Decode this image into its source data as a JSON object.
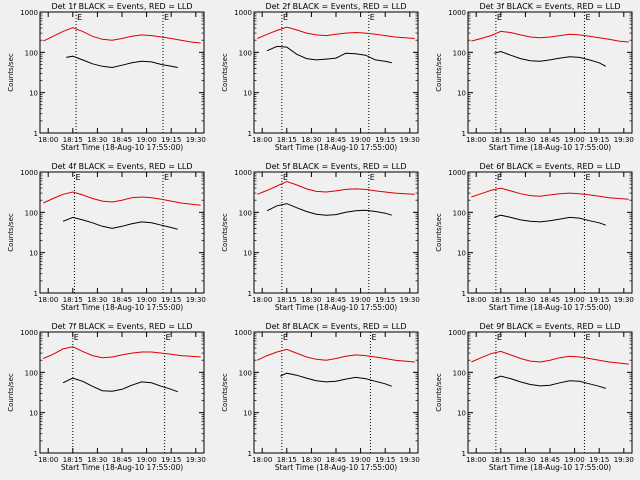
{
  "figure": {
    "xlabel": "Start Time (18-Aug-10 17:55:00)",
    "ylabel": "Counts/sec",
    "marker_label": "E",
    "colors": {
      "background": "#f0f0f0",
      "events": "#000000",
      "lld": "#dd0000",
      "axes": "#000000"
    }
  },
  "chart_data": [
    {
      "type": "line",
      "title": "Det 1f BLACK = Events, RED = LLD",
      "xlabel": "Start Time (18-Aug-10 17:55:00)",
      "ylabel": "Counts/sec",
      "yscale": "log",
      "ylim": [
        1,
        1000
      ],
      "y_ticks": [
        "1",
        "10",
        "100",
        "1000"
      ],
      "x_ticks": [
        "18:00",
        "18:15",
        "18:30",
        "18:45",
        "19:00",
        "19:15",
        "19:30"
      ],
      "x_markers": [
        "18:17",
        "19:10"
      ],
      "series": [
        {
          "name": "LLD",
          "color": "#dd0000",
          "x": [
            "17:57",
            "18:03",
            "18:09",
            "18:15",
            "18:21",
            "18:27",
            "18:33",
            "18:39",
            "18:45",
            "18:51",
            "18:57",
            "19:03",
            "19:09",
            "19:15",
            "19:21",
            "19:27",
            "19:33"
          ],
          "values": [
            190,
            250,
            330,
            410,
            330,
            250,
            210,
            200,
            220,
            250,
            270,
            260,
            240,
            220,
            200,
            180,
            170
          ]
        },
        {
          "name": "Events",
          "color": "#000000",
          "x": [
            "18:11",
            "18:15",
            "18:21",
            "18:27",
            "18:33",
            "18:39",
            "18:45",
            "18:51",
            "18:57",
            "19:03",
            "19:09",
            "19:15",
            "19:19"
          ],
          "values": [
            75,
            80,
            65,
            52,
            45,
            42,
            48,
            55,
            60,
            58,
            50,
            45,
            42
          ]
        }
      ]
    },
    {
      "type": "line",
      "title": "Det 2f BLACK = Events, RED = LLD",
      "xlabel": "Start Time (18-Aug-10 17:55:00)",
      "ylabel": "Counts/sec",
      "yscale": "log",
      "ylim": [
        1,
        1000
      ],
      "y_ticks": [
        "1",
        "10",
        "100",
        "1000"
      ],
      "x_ticks": [
        "18:00",
        "18:15",
        "18:30",
        "18:45",
        "19:00",
        "19:15",
        "19:30"
      ],
      "x_markers": [
        "18:12",
        "19:05"
      ],
      "series": [
        {
          "name": "LLD",
          "color": "#dd0000",
          "x": [
            "17:57",
            "18:03",
            "18:09",
            "18:15",
            "18:21",
            "18:27",
            "18:33",
            "18:39",
            "18:45",
            "18:51",
            "18:57",
            "19:03",
            "19:09",
            "19:15",
            "19:21",
            "19:27",
            "19:33"
          ],
          "values": [
            220,
            280,
            350,
            420,
            360,
            300,
            270,
            260,
            280,
            300,
            310,
            300,
            280,
            260,
            240,
            230,
            220
          ]
        },
        {
          "name": "Events",
          "color": "#000000",
          "x": [
            "18:03",
            "18:09",
            "18:15",
            "18:21",
            "18:27",
            "18:33",
            "18:39",
            "18:45",
            "18:51",
            "18:57",
            "19:03",
            "19:09",
            "19:15",
            "19:19"
          ],
          "values": [
            110,
            140,
            135,
            90,
            70,
            65,
            68,
            72,
            95,
            92,
            85,
            65,
            60,
            55
          ]
        }
      ]
    },
    {
      "type": "line",
      "title": "Det 3f BLACK = Events, RED = LLD",
      "xlabel": "Start Time (18-Aug-10 17:55:00)",
      "ylabel": "Counts/sec",
      "yscale": "log",
      "ylim": [
        1,
        1000
      ],
      "y_ticks": [
        "1",
        "10",
        "100",
        "1000"
      ],
      "x_ticks": [
        "18:00",
        "18:15",
        "18:30",
        "18:45",
        "19:00",
        "19:15",
        "19:30"
      ],
      "x_markers": [
        "18:12",
        "19:06"
      ],
      "series": [
        {
          "name": "LLD",
          "color": "#dd0000",
          "x": [
            "17:57",
            "18:03",
            "18:09",
            "18:15",
            "18:21",
            "18:27",
            "18:33",
            "18:39",
            "18:45",
            "18:51",
            "18:57",
            "19:03",
            "19:09",
            "19:15",
            "19:21",
            "19:27",
            "19:33"
          ],
          "values": [
            190,
            220,
            260,
            330,
            310,
            270,
            240,
            230,
            240,
            260,
            280,
            270,
            250,
            230,
            210,
            190,
            180
          ]
        },
        {
          "name": "Events",
          "color": "#000000",
          "x": [
            "18:11",
            "18:15",
            "18:21",
            "18:27",
            "18:33",
            "18:39",
            "18:45",
            "18:51",
            "18:57",
            "19:03",
            "19:09",
            "19:15",
            "19:19"
          ],
          "values": [
            95,
            105,
            85,
            70,
            62,
            60,
            65,
            72,
            78,
            75,
            65,
            55,
            45
          ]
        }
      ]
    },
    {
      "type": "line",
      "title": "Det 4f BLACK = Events, RED = LLD",
      "xlabel": "Start Time (18-Aug-10 17:55:00)",
      "ylabel": "Counts/sec",
      "yscale": "log",
      "ylim": [
        1,
        1000
      ],
      "y_ticks": [
        "1",
        "10",
        "100",
        "1000"
      ],
      "x_ticks": [
        "18:00",
        "18:15",
        "18:30",
        "18:45",
        "19:00",
        "19:15",
        "19:30"
      ],
      "x_markers": [
        "18:16",
        "19:10"
      ],
      "series": [
        {
          "name": "LLD",
          "color": "#dd0000",
          "x": [
            "17:57",
            "18:03",
            "18:09",
            "18:15",
            "18:21",
            "18:27",
            "18:33",
            "18:39",
            "18:45",
            "18:51",
            "18:57",
            "19:03",
            "19:09",
            "19:15",
            "19:21",
            "19:27",
            "19:33"
          ],
          "values": [
            170,
            220,
            280,
            320,
            270,
            220,
            190,
            180,
            200,
            230,
            240,
            230,
            210,
            190,
            170,
            160,
            150
          ]
        },
        {
          "name": "Events",
          "color": "#000000",
          "x": [
            "18:09",
            "18:15",
            "18:21",
            "18:27",
            "18:33",
            "18:39",
            "18:45",
            "18:51",
            "18:57",
            "19:03",
            "19:09",
            "19:15",
            "19:19"
          ],
          "values": [
            60,
            75,
            65,
            55,
            45,
            40,
            45,
            52,
            58,
            55,
            48,
            42,
            38
          ]
        }
      ]
    },
    {
      "type": "line",
      "title": "Det 5f BLACK = Events, RED = LLD",
      "xlabel": "Start Time (18-Aug-10 17:55:00)",
      "ylabel": "Counts/sec",
      "yscale": "log",
      "ylim": [
        1,
        1000
      ],
      "y_ticks": [
        "1",
        "10",
        "100",
        "1000"
      ],
      "x_ticks": [
        "18:00",
        "18:15",
        "18:30",
        "18:45",
        "19:00",
        "19:15",
        "19:30"
      ],
      "x_markers": [
        "18:12",
        "19:05"
      ],
      "series": [
        {
          "name": "LLD",
          "color": "#dd0000",
          "x": [
            "17:57",
            "18:03",
            "18:09",
            "18:15",
            "18:21",
            "18:27",
            "18:33",
            "18:39",
            "18:45",
            "18:51",
            "18:57",
            "19:03",
            "19:09",
            "19:15",
            "19:21",
            "19:27",
            "19:33"
          ],
          "values": [
            280,
            350,
            450,
            580,
            480,
            380,
            330,
            320,
            340,
            370,
            380,
            370,
            340,
            320,
            300,
            290,
            280
          ]
        },
        {
          "name": "Events",
          "color": "#000000",
          "x": [
            "18:03",
            "18:09",
            "18:15",
            "18:21",
            "18:27",
            "18:33",
            "18:39",
            "18:45",
            "18:51",
            "18:57",
            "19:03",
            "19:09",
            "19:15",
            "19:19"
          ],
          "values": [
            110,
            145,
            165,
            130,
            105,
            90,
            85,
            88,
            100,
            110,
            112,
            105,
            95,
            85
          ]
        }
      ]
    },
    {
      "type": "line",
      "title": "Det 6f BLACK = Events, RED = LLD",
      "xlabel": "Start Time (18-Aug-10 17:55:00)",
      "ylabel": "Counts/sec",
      "yscale": "log",
      "ylim": [
        1,
        1000
      ],
      "y_ticks": [
        "1",
        "10",
        "100",
        "1000"
      ],
      "x_ticks": [
        "18:00",
        "18:15",
        "18:30",
        "18:45",
        "19:00",
        "19:15",
        "19:30"
      ],
      "x_markers": [
        "18:12",
        "19:06"
      ],
      "series": [
        {
          "name": "LLD",
          "color": "#dd0000",
          "x": [
            "17:57",
            "18:03",
            "18:09",
            "18:15",
            "18:21",
            "18:27",
            "18:33",
            "18:39",
            "18:45",
            "18:51",
            "18:57",
            "19:03",
            "19:09",
            "19:15",
            "19:21",
            "19:27",
            "19:33"
          ],
          "values": [
            240,
            290,
            350,
            400,
            340,
            290,
            260,
            250,
            270,
            290,
            300,
            290,
            270,
            250,
            230,
            220,
            210
          ]
        },
        {
          "name": "Events",
          "color": "#000000",
          "x": [
            "18:11",
            "18:15",
            "18:21",
            "18:27",
            "18:33",
            "18:39",
            "18:45",
            "18:51",
            "18:57",
            "19:03",
            "19:09",
            "19:15",
            "19:19"
          ],
          "values": [
            75,
            85,
            75,
            65,
            60,
            58,
            62,
            68,
            75,
            72,
            62,
            55,
            48
          ]
        }
      ]
    },
    {
      "type": "line",
      "title": "Det 7f BLACK = Events, RED = LLD",
      "xlabel": "Start Time (18-Aug-10 17:55:00)",
      "ylabel": "Counts/sec",
      "yscale": "log",
      "ylim": [
        1,
        1000
      ],
      "y_ticks": [
        "1",
        "10",
        "100",
        "1000"
      ],
      "x_ticks": [
        "18:00",
        "18:15",
        "18:30",
        "18:45",
        "19:00",
        "19:15",
        "19:30"
      ],
      "x_markers": [
        "18:15",
        "19:11"
      ],
      "series": [
        {
          "name": "LLD",
          "color": "#dd0000",
          "x": [
            "17:57",
            "18:03",
            "18:09",
            "18:15",
            "18:21",
            "18:27",
            "18:33",
            "18:39",
            "18:45",
            "18:51",
            "18:57",
            "19:03",
            "19:09",
            "19:15",
            "19:21",
            "19:27",
            "19:33"
          ],
          "values": [
            220,
            280,
            380,
            430,
            330,
            260,
            230,
            240,
            270,
            300,
            320,
            320,
            300,
            280,
            260,
            250,
            240
          ]
        },
        {
          "name": "Events",
          "color": "#000000",
          "x": [
            "18:09",
            "18:15",
            "18:21",
            "18:27",
            "18:33",
            "18:39",
            "18:45",
            "18:51",
            "18:57",
            "19:03",
            "19:09",
            "19:15",
            "19:19"
          ],
          "values": [
            55,
            72,
            60,
            45,
            35,
            34,
            38,
            48,
            58,
            55,
            45,
            38,
            33
          ]
        }
      ]
    },
    {
      "type": "line",
      "title": "Det 8f BLACK = Events, RED = LLD",
      "xlabel": "Start Time (18-Aug-10 17:55:00)",
      "ylabel": "Counts/sec",
      "yscale": "log",
      "ylim": [
        1,
        1000
      ],
      "y_ticks": [
        "1",
        "10",
        "100",
        "1000"
      ],
      "x_ticks": [
        "18:00",
        "18:15",
        "18:30",
        "18:45",
        "19:00",
        "19:15",
        "19:30"
      ],
      "x_markers": [
        "18:12",
        "19:06"
      ],
      "series": [
        {
          "name": "LLD",
          "color": "#dd0000",
          "x": [
            "17:57",
            "18:03",
            "18:09",
            "18:15",
            "18:21",
            "18:27",
            "18:33",
            "18:39",
            "18:45",
            "18:51",
            "18:57",
            "19:03",
            "19:09",
            "19:15",
            "19:21",
            "19:27",
            "19:33"
          ],
          "values": [
            200,
            260,
            320,
            370,
            300,
            240,
            210,
            200,
            220,
            250,
            270,
            260,
            240,
            220,
            200,
            190,
            180
          ]
        },
        {
          "name": "Events",
          "color": "#000000",
          "x": [
            "18:11",
            "18:15",
            "18:21",
            "18:27",
            "18:33",
            "18:39",
            "18:45",
            "18:51",
            "18:57",
            "19:03",
            "19:09",
            "19:15",
            "19:19"
          ],
          "values": [
            80,
            95,
            85,
            72,
            62,
            58,
            60,
            68,
            75,
            70,
            60,
            52,
            45
          ]
        }
      ]
    },
    {
      "type": "line",
      "title": "Det 9f BLACK = Events, RED = LLD",
      "xlabel": "Start Time (18-Aug-10 17:55:00)",
      "ylabel": "Counts/sec",
      "yscale": "log",
      "ylim": [
        1,
        1000
      ],
      "y_ticks": [
        "1",
        "10",
        "100",
        "1000"
      ],
      "x_ticks": [
        "18:00",
        "18:15",
        "18:30",
        "18:45",
        "19:00",
        "19:15",
        "19:30"
      ],
      "x_markers": [
        "18:12",
        "19:06"
      ],
      "series": [
        {
          "name": "LLD",
          "color": "#dd0000",
          "x": [
            "17:57",
            "18:03",
            "18:09",
            "18:15",
            "18:21",
            "18:27",
            "18:33",
            "18:39",
            "18:45",
            "18:51",
            "18:57",
            "19:03",
            "19:09",
            "19:15",
            "19:21",
            "19:27",
            "19:33"
          ],
          "values": [
            180,
            230,
            290,
            330,
            270,
            220,
            190,
            180,
            200,
            230,
            250,
            240,
            220,
            200,
            180,
            170,
            160
          ]
        },
        {
          "name": "Events",
          "color": "#000000",
          "x": [
            "18:11",
            "18:15",
            "18:21",
            "18:27",
            "18:33",
            "18:39",
            "18:45",
            "18:51",
            "18:57",
            "19:03",
            "19:09",
            "19:15",
            "19:19"
          ],
          "values": [
            70,
            80,
            70,
            58,
            50,
            46,
            48,
            55,
            62,
            60,
            52,
            45,
            40
          ]
        }
      ]
    }
  ]
}
